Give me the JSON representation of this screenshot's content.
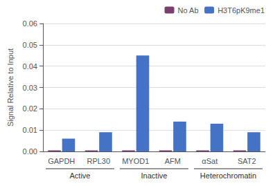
{
  "chart_data": {
    "type": "bar",
    "categories": [
      "GAPDH",
      "RPL30",
      "MYOD1",
      "AFM",
      "αSat",
      "SAT2"
    ],
    "series": [
      {
        "name": "No Ab",
        "color": "#7B3F6E",
        "values": [
          0.0005,
          0.0005,
          0.0005,
          0.0005,
          0.0005,
          0.0005
        ]
      },
      {
        "name": "H3T6pK9me1",
        "color": "#4472C4",
        "values": [
          0.006,
          0.009,
          0.045,
          0.014,
          0.013,
          0.009
        ]
      }
    ],
    "ylabel": "Signal Relative to Input",
    "ylim": [
      0,
      0.06
    ],
    "yticks": [
      {
        "value": 0,
        "label": "0.00"
      },
      0.01,
      0.02,
      0.03,
      0.04,
      0.05,
      0.06
    ],
    "grid": true,
    "legend": "upper right",
    "groups": [
      {
        "name": "Active",
        "categories": [
          "GAPDH",
          "RPL30"
        ]
      },
      {
        "name": "Inactive",
        "categories": [
          "MYOD1",
          "AFM"
        ]
      },
      {
        "name": "Heterochromatin",
        "categories": [
          "αSat",
          "SAT2"
        ]
      }
    ]
  }
}
